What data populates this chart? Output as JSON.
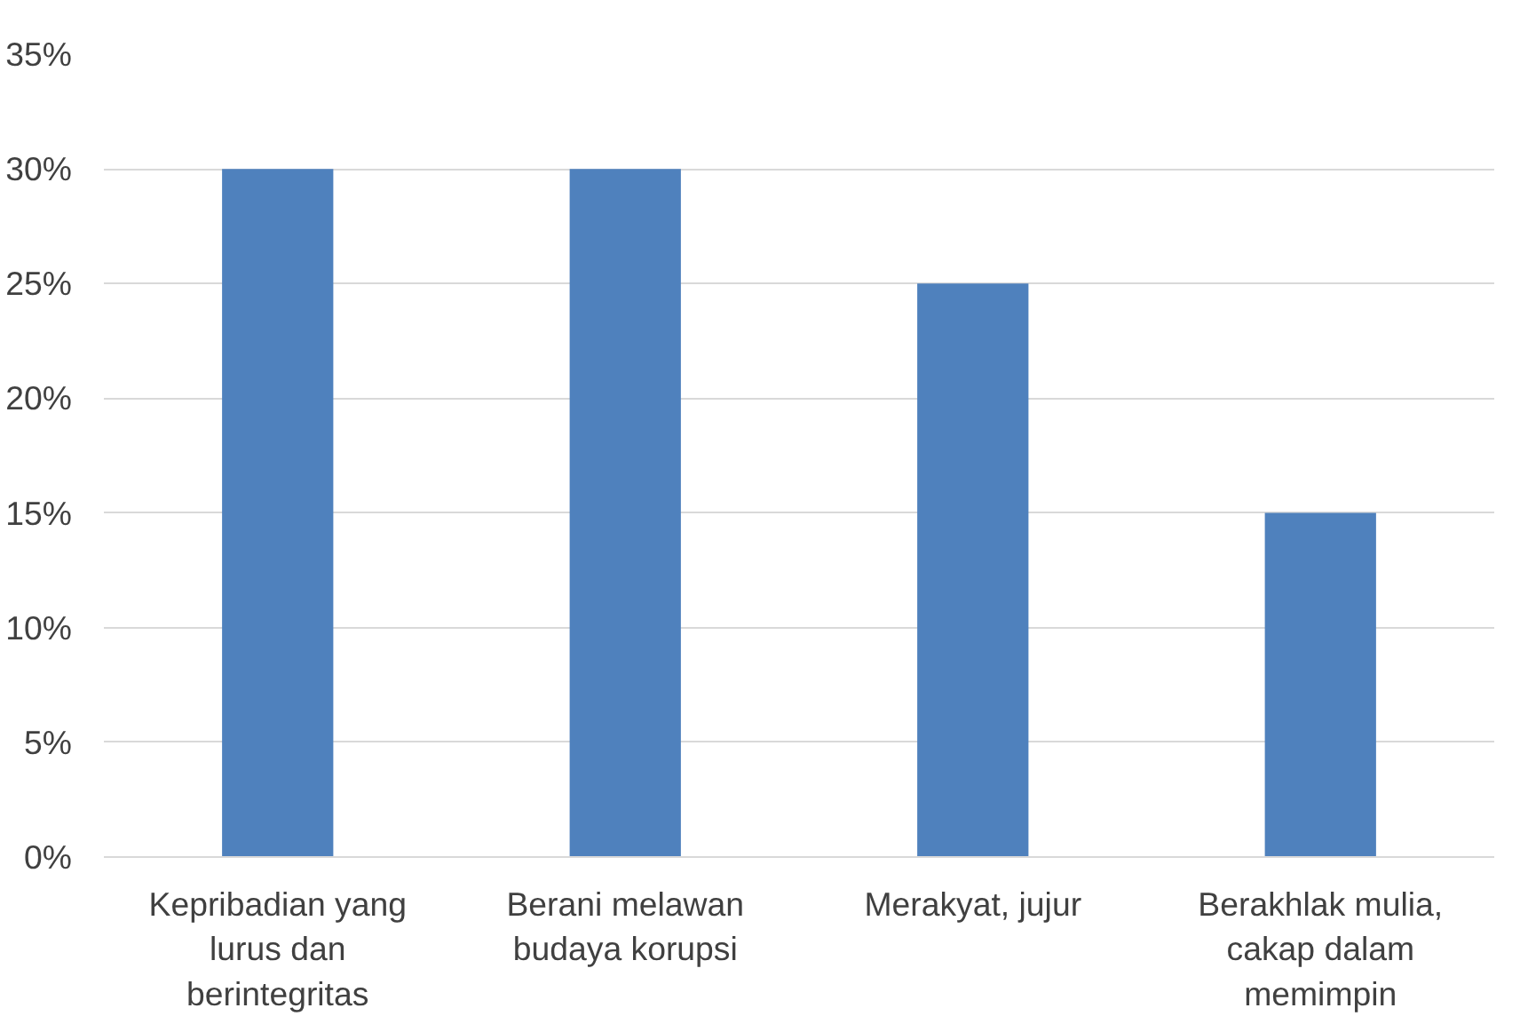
{
  "chart_data": {
    "type": "bar",
    "categories": [
      "Kepribadian yang\nlurus dan\nberintegritas",
      "Berani melawan\nbudaya korupsi",
      "Merakyat, jujur",
      "Berakhlak mulia,\ncakap dalam\nmemimpin"
    ],
    "values": [
      30,
      30,
      25,
      15
    ],
    "color": "#4f81bd",
    "ylim": [
      0,
      35
    ],
    "yticks": [
      {
        "value": 0,
        "label": "0%"
      },
      {
        "value": 5,
        "label": "5%"
      },
      {
        "value": 10,
        "label": "10%"
      },
      {
        "value": 15,
        "label": "15%"
      },
      {
        "value": 20,
        "label": "20%"
      },
      {
        "value": 25,
        "label": "25%"
      },
      {
        "value": 30,
        "label": "30%"
      },
      {
        "value": 35,
        "label": "35%"
      }
    ],
    "grid": "y"
  }
}
